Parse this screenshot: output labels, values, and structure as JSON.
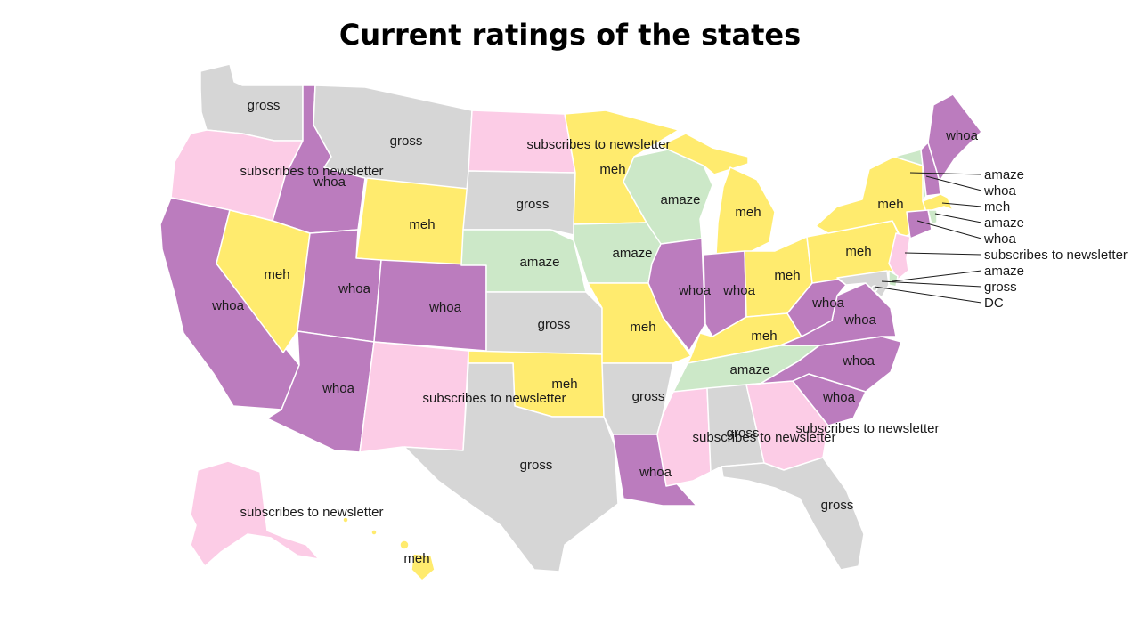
{
  "title": "Current ratings of the states",
  "colors": {
    "gross": "#d6d6d6",
    "subscribes to newsletter": "#fccce6",
    "whoa": "#bb7cbe",
    "meh": "#ffeb6e",
    "amaze": "#cce8c8"
  },
  "states": [
    {
      "id": "WA",
      "rating": "gross"
    },
    {
      "id": "OR",
      "rating": "subscribes to newsletter"
    },
    {
      "id": "CA",
      "rating": "whoa"
    },
    {
      "id": "ID",
      "rating": "whoa"
    },
    {
      "id": "NV",
      "rating": "meh"
    },
    {
      "id": "MT",
      "rating": "gross"
    },
    {
      "id": "WY",
      "rating": "meh"
    },
    {
      "id": "UT",
      "rating": "whoa"
    },
    {
      "id": "AZ",
      "rating": "whoa"
    },
    {
      "id": "CO",
      "rating": "whoa"
    },
    {
      "id": "NM",
      "rating": "subscribes to newsletter"
    },
    {
      "id": "ND",
      "rating": "subscribes to newsletter"
    },
    {
      "id": "SD",
      "rating": "gross"
    },
    {
      "id": "NE",
      "rating": "amaze"
    },
    {
      "id": "KS",
      "rating": "gross"
    },
    {
      "id": "OK",
      "rating": "meh"
    },
    {
      "id": "TX",
      "rating": "gross"
    },
    {
      "id": "MN",
      "rating": "meh"
    },
    {
      "id": "IA",
      "rating": "amaze"
    },
    {
      "id": "MO",
      "rating": "meh"
    },
    {
      "id": "AR",
      "rating": "gross"
    },
    {
      "id": "LA",
      "rating": "whoa"
    },
    {
      "id": "WI",
      "rating": "amaze"
    },
    {
      "id": "IL",
      "rating": "whoa"
    },
    {
      "id": "MI",
      "rating": "meh"
    },
    {
      "id": "IN",
      "rating": "whoa"
    },
    {
      "id": "OH",
      "rating": "meh"
    },
    {
      "id": "KY",
      "rating": "meh"
    },
    {
      "id": "TN",
      "rating": "amaze"
    },
    {
      "id": "MS",
      "rating": "subscribes to newsletter"
    },
    {
      "id": "AL",
      "rating": "gross"
    },
    {
      "id": "GA",
      "rating": "subscribes to newsletter"
    },
    {
      "id": "FL",
      "rating": "gross"
    },
    {
      "id": "SC",
      "rating": "whoa"
    },
    {
      "id": "NC",
      "rating": "whoa"
    },
    {
      "id": "VA",
      "rating": "whoa"
    },
    {
      "id": "WV",
      "rating": "whoa"
    },
    {
      "id": "PA",
      "rating": "meh"
    },
    {
      "id": "NY",
      "rating": "meh"
    },
    {
      "id": "VT",
      "rating": "amaze"
    },
    {
      "id": "NH",
      "rating": "whoa"
    },
    {
      "id": "ME",
      "rating": "whoa"
    },
    {
      "id": "MA",
      "rating": "meh"
    },
    {
      "id": "RI",
      "rating": "amaze"
    },
    {
      "id": "CT",
      "rating": "whoa"
    },
    {
      "id": "NJ",
      "rating": "subscribes to newsletter"
    },
    {
      "id": "DE",
      "rating": "amaze"
    },
    {
      "id": "MD",
      "rating": "gross"
    },
    {
      "id": "DC",
      "rating": "gross"
    },
    {
      "id": "AK",
      "rating": "subscribes to newsletter"
    },
    {
      "id": "HI",
      "rating": "meh"
    }
  ],
  "callouts": [
    {
      "text": "amaze"
    },
    {
      "text": "whoa"
    },
    {
      "text": "meh"
    },
    {
      "text": "amaze"
    },
    {
      "text": "whoa"
    },
    {
      "text": "subscribes to newsletter"
    },
    {
      "text": "amaze"
    },
    {
      "text": "gross"
    },
    {
      "text": "DC"
    }
  ]
}
